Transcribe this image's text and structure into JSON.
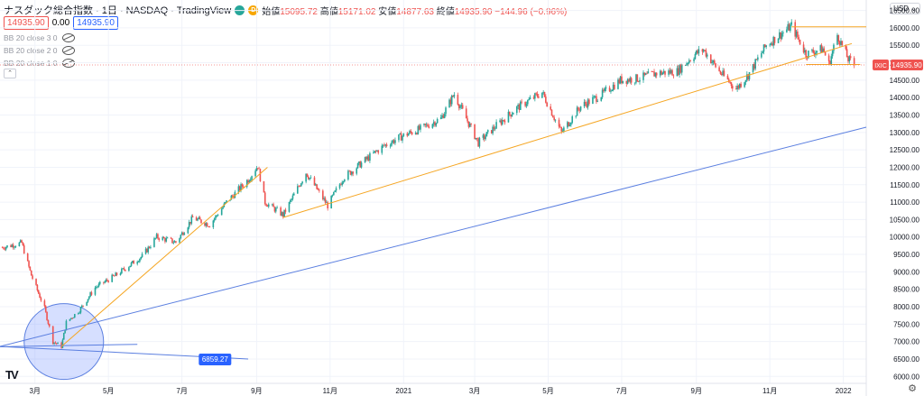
{
  "header": {
    "symbol": "ナスダック総合指数 · 1日 · NASDAQ · TradingView",
    "market_icon": "green-dot-icon",
    "d_badge": "D",
    "open_label": "始値",
    "open_value": "15095.72",
    "high_label": "高値",
    "high_value": "15171.02",
    "low_label": "安値",
    "low_value": "14877.63",
    "close_label": "終値",
    "close_value": "14935.90",
    "change": "−144.96 (−0.96%)",
    "sell_price": "14935.90",
    "spread": "0.00",
    "buy_price": "14935.90"
  },
  "indicators": [
    {
      "label": "BB 20 close 3 0",
      "icon": "eye-off-icon"
    },
    {
      "label": "BB 20 close 2 0",
      "icon": "eye-off-icon"
    },
    {
      "label": "BB 20 close 1 0",
      "icon": "eye-off-icon"
    }
  ],
  "currency": "USD ⌄",
  "price_tag": {
    "label": "IXIC",
    "value": "14935.90"
  },
  "annotation_label": "6859.27",
  "chart_data": {
    "type": "candlestick",
    "title": "ナスダック総合指数 · 1日 · NASDAQ · TradingView",
    "xlabel": "",
    "ylabel": "",
    "x_range": [
      "2020-02-01",
      "2022-01-20"
    ],
    "ylim": [
      5800,
      16800
    ],
    "y_ticks": [
      "6000.00",
      "6500.00",
      "7000.00",
      "7500.00",
      "8000.00",
      "8500.00",
      "9000.00",
      "9500.00",
      "10000.00",
      "10500.00",
      "11000.00",
      "11500.00",
      "12000.00",
      "12500.00",
      "13000.00",
      "13500.00",
      "14000.00",
      "14500.00",
      "15000.00",
      "15500.00",
      "16000.00",
      "16500.00"
    ],
    "top_tick_partial": "17000.00",
    "x_ticks": [
      {
        "date": "2020-03-01",
        "label": "3月"
      },
      {
        "date": "2020-05-01",
        "label": "5月"
      },
      {
        "date": "2020-07-01",
        "label": "7月"
      },
      {
        "date": "2020-09-01",
        "label": "9月"
      },
      {
        "date": "2020-11-01",
        "label": "11月"
      },
      {
        "date": "2021-01-01",
        "label": "2021"
      },
      {
        "date": "2021-03-01",
        "label": "3月"
      },
      {
        "date": "2021-05-01",
        "label": "5月"
      },
      {
        "date": "2021-07-01",
        "label": "7月"
      },
      {
        "date": "2021-09-01",
        "label": "9月"
      },
      {
        "date": "2021-11-01",
        "label": "11月"
      },
      {
        "date": "2022-01-01",
        "label": "2022"
      }
    ],
    "price_path": [
      [
        "2020-02-03",
        9700
      ],
      [
        "2020-02-19",
        9830
      ],
      [
        "2020-02-27",
        8900
      ],
      [
        "2020-03-09",
        7950
      ],
      [
        "2020-03-16",
        7000
      ],
      [
        "2020-03-23",
        6860
      ],
      [
        "2020-03-27",
        7550
      ],
      [
        "2020-04-07",
        7900
      ],
      [
        "2020-04-20",
        8550
      ],
      [
        "2020-05-07",
        8900
      ],
      [
        "2020-05-29",
        9450
      ],
      [
        "2020-06-10",
        10000
      ],
      [
        "2020-06-26",
        9850
      ],
      [
        "2020-07-10",
        10550
      ],
      [
        "2020-07-24",
        10350
      ],
      [
        "2020-08-07",
        11000
      ],
      [
        "2020-08-25",
        11650
      ],
      [
        "2020-09-02",
        12050
      ],
      [
        "2020-09-08",
        11000
      ],
      [
        "2020-09-23",
        10630
      ],
      [
        "2020-10-12",
        11850
      ],
      [
        "2020-10-30",
        10900
      ],
      [
        "2020-11-12",
        11700
      ],
      [
        "2020-11-30",
        12200
      ],
      [
        "2020-12-15",
        12600
      ],
      [
        "2020-12-31",
        12900
      ],
      [
        "2021-01-15",
        13100
      ],
      [
        "2021-02-01",
        13400
      ],
      [
        "2021-02-12",
        14100
      ],
      [
        "2021-03-04",
        12700
      ],
      [
        "2021-03-19",
        13200
      ],
      [
        "2021-04-05",
        13700
      ],
      [
        "2021-04-26",
        14150
      ],
      [
        "2021-05-12",
        13000
      ],
      [
        "2021-05-28",
        13750
      ],
      [
        "2021-06-15",
        14100
      ],
      [
        "2021-06-30",
        14500
      ],
      [
        "2021-07-15",
        14550
      ],
      [
        "2021-07-30",
        14700
      ],
      [
        "2021-08-16",
        14750
      ],
      [
        "2021-08-31",
        15250
      ],
      [
        "2021-09-07",
        15370
      ],
      [
        "2021-09-20",
        14750
      ],
      [
        "2021-10-04",
        14250
      ],
      [
        "2021-10-14",
        14650
      ],
      [
        "2021-10-29",
        15500
      ],
      [
        "2021-11-19",
        16060
      ],
      [
        "2021-12-01",
        15250
      ],
      [
        "2021-12-15",
        15400
      ],
      [
        "2021-12-20",
        14950
      ],
      [
        "2021-12-27",
        15800
      ],
      [
        "2022-01-05",
        15100
      ],
      [
        "2022-01-10",
        14940
      ]
    ],
    "last_close": 14935.9,
    "drawings": [
      {
        "name": "trendline-blue-long",
        "color": "#5b7fe0",
        "points": [
          [
            "2020-02-01",
            6859.27
          ],
          [
            "2022-01-20",
            13150
          ]
        ]
      },
      {
        "name": "trendline-blue-short",
        "color": "#5b7fe0",
        "points": [
          [
            "2020-02-01",
            6850
          ],
          [
            "2020-05-25",
            6920
          ]
        ]
      },
      {
        "name": "trendline-blue-down",
        "color": "#5b7fe0",
        "points": [
          [
            "2020-02-01",
            6859.27
          ],
          [
            "2020-08-25",
            6500
          ]
        ]
      },
      {
        "name": "trendline-orange-1",
        "color": "#f5a623",
        "points": [
          [
            "2020-03-23",
            6859.27
          ],
          [
            "2020-09-10",
            12000
          ]
        ]
      },
      {
        "name": "trendline-orange-2",
        "color": "#f5a623",
        "points": [
          [
            "2020-09-23",
            10560
          ],
          [
            "2022-01-08",
            15550
          ]
        ]
      },
      {
        "name": "horizontal-orange-top",
        "color": "#f5a623",
        "points": [
          [
            "2021-11-19",
            16030
          ],
          [
            "2022-01-20",
            16030
          ]
        ]
      },
      {
        "name": "horizontal-orange-bottom",
        "color": "#f5a623",
        "points": [
          [
            "2021-12-01",
            14950
          ],
          [
            "2022-01-15",
            14950
          ]
        ]
      }
    ],
    "highlight_circle": {
      "center": [
        "2020-03-25",
        7000
      ],
      "note": "ellipse marking the March 2020 low"
    },
    "colors": {
      "up": "#26a69a",
      "down": "#ef5350",
      "grid": "#f0f3fa",
      "price_line": "#ef5350"
    }
  }
}
